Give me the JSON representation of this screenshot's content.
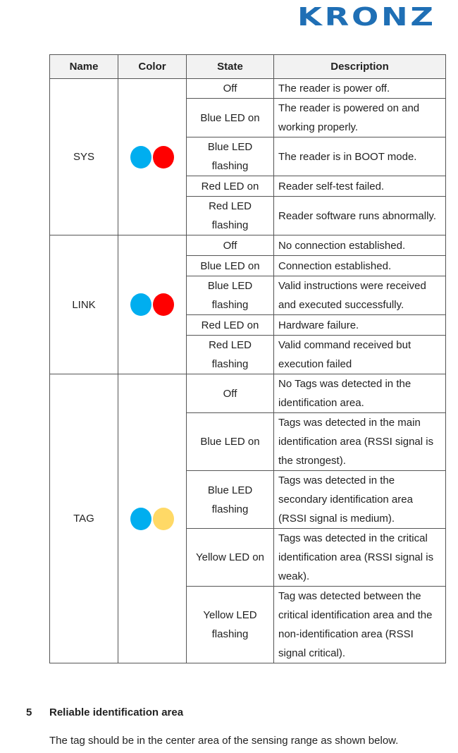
{
  "header": {
    "logo_text": "KRONZ",
    "logo_color": "#1f6fb5"
  },
  "table": {
    "columns": [
      "Name",
      "Color",
      "State",
      "Description"
    ],
    "groups": [
      {
        "name": "SYS",
        "leds": [
          "#00aeef",
          "#ff0000"
        ],
        "rows": [
          {
            "state": "Off",
            "description": "The reader is power off."
          },
          {
            "state": "Blue LED on",
            "description": "The reader is powered on and working properly."
          },
          {
            "state": "Blue LED flashing",
            "description": "The reader is in BOOT mode."
          },
          {
            "state": "Red LED on",
            "description": "Reader self-test failed."
          },
          {
            "state": "Red LED flashing",
            "description": "Reader software runs abnormally."
          }
        ]
      },
      {
        "name": "LINK",
        "leds": [
          "#00aeef",
          "#ff0000"
        ],
        "rows": [
          {
            "state": "Off",
            "description": "No connection established."
          },
          {
            "state": "Blue LED on",
            "description": "Connection established."
          },
          {
            "state": "Blue LED flashing",
            "description": "Valid instructions were received and executed successfully."
          },
          {
            "state": "Red LED on",
            "description": "Hardware failure."
          },
          {
            "state": "Red LED flashing",
            "description": "Valid command received but execution failed"
          }
        ]
      },
      {
        "name": "TAG",
        "leds": [
          "#00aeef",
          "#ffd966"
        ],
        "rows": [
          {
            "state": "Off",
            "description": "No Tags was detected in the identification area."
          },
          {
            "state": "Blue LED on",
            "description": "Tags was detected in the main identification area (RSSI signal is the strongest)."
          },
          {
            "state": "Blue LED flashing",
            "description": "Tags was detected in the secondary identification area (RSSI signal is medium)."
          },
          {
            "state": "Yellow LED on",
            "description": "Tags was detected in the critical identification area (RSSI signal is weak)."
          },
          {
            "state": "Yellow LED flashing",
            "description": "Tag was detected between the critical identification area and the non-identification area (RSSI signal critical)."
          }
        ]
      }
    ]
  },
  "section": {
    "number": "5",
    "title": "Reliable identification area",
    "body": "The tag should be in the center area of the sensing range as shown below."
  }
}
